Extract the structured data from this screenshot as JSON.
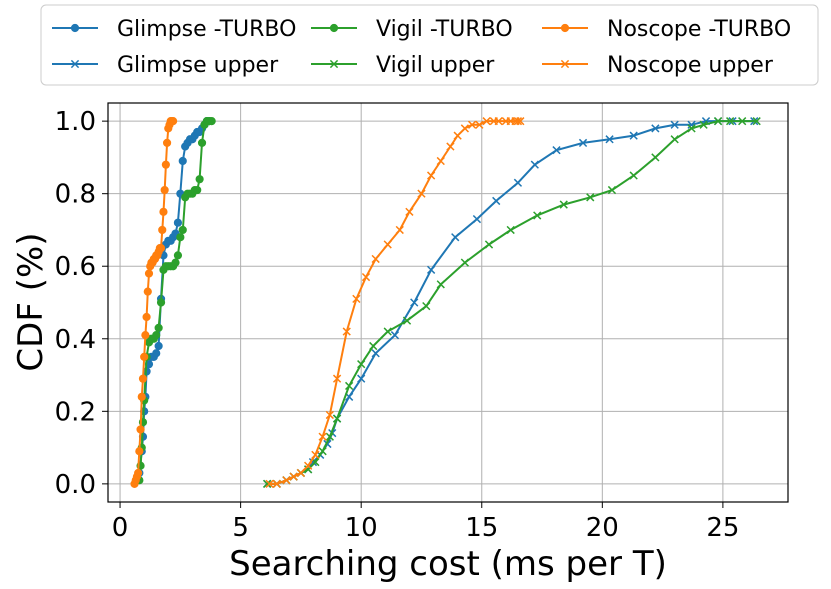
{
  "chart_data": {
    "type": "line",
    "xlabel": "Searching cost (ms per T)",
    "ylabel": "CDF (%)",
    "xlim": [
      -0.5,
      27.7
    ],
    "ylim": [
      -0.05,
      1.05
    ],
    "xticks": [
      0,
      5,
      10,
      15,
      20,
      25
    ],
    "xtick_labels": [
      "0",
      "5",
      "10",
      "15",
      "20",
      "25"
    ],
    "yticks": [
      0.0,
      0.2,
      0.4,
      0.6,
      0.8,
      1.0
    ],
    "ytick_labels": [
      "0.0",
      "0.2",
      "0.4",
      "0.6",
      "0.8",
      "1.0"
    ],
    "grid": true,
    "legend_position": "top",
    "series": [
      {
        "name": "Glimpse -TURBO",
        "color": "#1f77b4",
        "marker": "circle",
        "x": [
          0.7,
          0.8,
          0.9,
          0.95,
          1.0,
          1.05,
          1.1,
          1.2,
          1.3,
          1.4,
          1.5,
          1.6,
          1.7,
          1.8,
          1.9,
          2.0,
          2.1,
          2.2,
          2.3,
          2.4,
          2.5,
          2.6,
          2.7,
          2.8,
          2.9,
          3.0,
          3.1,
          3.2,
          3.3,
          3.4,
          3.5,
          3.6,
          3.7
        ],
        "y": [
          0.01,
          0.03,
          0.09,
          0.13,
          0.2,
          0.24,
          0.31,
          0.33,
          0.35,
          0.35,
          0.36,
          0.38,
          0.51,
          0.63,
          0.66,
          0.67,
          0.67,
          0.68,
          0.69,
          0.72,
          0.8,
          0.89,
          0.93,
          0.94,
          0.95,
          0.95,
          0.96,
          0.97,
          0.97,
          0.98,
          0.99,
          1.0,
          1.0
        ]
      },
      {
        "name": "Vigil -TURBO",
        "color": "#2ca02c",
        "marker": "circle",
        "x": [
          0.8,
          0.85,
          0.9,
          0.95,
          1.0,
          1.1,
          1.2,
          1.3,
          1.4,
          1.5,
          1.6,
          1.7,
          1.8,
          1.9,
          2.0,
          2.1,
          2.2,
          2.3,
          2.4,
          2.5,
          2.6,
          2.7,
          2.8,
          2.9,
          3.0,
          3.1,
          3.2,
          3.3,
          3.4,
          3.5,
          3.6,
          3.7,
          3.8
        ],
        "y": [
          0.01,
          0.05,
          0.1,
          0.17,
          0.23,
          0.35,
          0.39,
          0.4,
          0.4,
          0.41,
          0.43,
          0.5,
          0.59,
          0.6,
          0.6,
          0.6,
          0.6,
          0.61,
          0.63,
          0.68,
          0.7,
          0.79,
          0.8,
          0.8,
          0.8,
          0.81,
          0.81,
          0.84,
          0.94,
          0.99,
          1.0,
          1.0,
          1.0
        ]
      },
      {
        "name": "Noscope -TURBO",
        "color": "#ff7f0e",
        "marker": "circle",
        "x": [
          0.6,
          0.65,
          0.7,
          0.75,
          0.8,
          0.85,
          0.9,
          0.95,
          1.0,
          1.05,
          1.1,
          1.15,
          1.2,
          1.25,
          1.3,
          1.35,
          1.4,
          1.45,
          1.5,
          1.55,
          1.6,
          1.65,
          1.7,
          1.75,
          1.8,
          1.85,
          1.9,
          1.95,
          2.0,
          2.05,
          2.1,
          2.15,
          2.2
        ],
        "y": [
          0.0,
          0.01,
          0.02,
          0.03,
          0.09,
          0.15,
          0.24,
          0.29,
          0.35,
          0.41,
          0.46,
          0.53,
          0.58,
          0.6,
          0.61,
          0.61,
          0.62,
          0.62,
          0.63,
          0.63,
          0.64,
          0.65,
          0.65,
          0.7,
          0.75,
          0.81,
          0.88,
          0.94,
          0.98,
          0.99,
          1.0,
          1.0,
          1.0
        ]
      },
      {
        "name": "Glimpse upper",
        "color": "#1f77b4",
        "marker": "x",
        "x": [
          6.1,
          6.5,
          6.9,
          7.2,
          7.5,
          7.8,
          8.0,
          8.3,
          8.6,
          8.8,
          9.0,
          9.5,
          10.0,
          10.6,
          11.4,
          12.2,
          12.9,
          13.9,
          14.8,
          15.6,
          16.5,
          17.2,
          18.1,
          19.2,
          20.3,
          21.3,
          22.2,
          23.0,
          23.7,
          24.3,
          24.8,
          25.4,
          26.3
        ],
        "y": [
          0.0,
          0.0,
          0.01,
          0.02,
          0.03,
          0.04,
          0.06,
          0.08,
          0.11,
          0.14,
          0.18,
          0.24,
          0.29,
          0.36,
          0.41,
          0.5,
          0.59,
          0.68,
          0.73,
          0.78,
          0.83,
          0.88,
          0.92,
          0.94,
          0.95,
          0.96,
          0.98,
          0.99,
          0.99,
          1.0,
          1.0,
          1.0,
          1.0
        ]
      },
      {
        "name": "Vigil upper",
        "color": "#2ca02c",
        "marker": "x",
        "x": [
          6.1,
          6.5,
          6.9,
          7.2,
          7.5,
          7.8,
          8.1,
          8.4,
          8.7,
          9.0,
          9.5,
          10.0,
          10.5,
          11.1,
          11.9,
          12.7,
          13.3,
          14.3,
          15.3,
          16.2,
          17.3,
          18.4,
          19.5,
          20.4,
          21.3,
          22.2,
          23.0,
          23.7,
          24.2,
          24.8,
          25.3,
          25.8,
          26.4
        ],
        "y": [
          0.0,
          0.0,
          0.01,
          0.02,
          0.03,
          0.04,
          0.06,
          0.09,
          0.13,
          0.18,
          0.27,
          0.33,
          0.38,
          0.42,
          0.45,
          0.49,
          0.55,
          0.61,
          0.66,
          0.7,
          0.74,
          0.77,
          0.79,
          0.81,
          0.85,
          0.9,
          0.95,
          0.98,
          0.99,
          1.0,
          1.0,
          1.0,
          1.0
        ]
      },
      {
        "name": "Noscope upper",
        "color": "#ff7f0e",
        "marker": "x",
        "x": [
          6.2,
          6.5,
          6.9,
          7.2,
          7.5,
          7.8,
          8.1,
          8.4,
          8.7,
          9.0,
          9.4,
          9.8,
          10.2,
          10.6,
          11.1,
          11.6,
          12.0,
          12.5,
          12.9,
          13.3,
          13.7,
          14.0,
          14.3,
          14.6,
          14.9,
          15.2,
          15.5,
          15.7,
          16.0,
          16.2,
          16.4,
          16.5,
          16.6
        ],
        "y": [
          0.0,
          0.0,
          0.01,
          0.02,
          0.03,
          0.05,
          0.08,
          0.13,
          0.19,
          0.29,
          0.42,
          0.51,
          0.57,
          0.62,
          0.66,
          0.7,
          0.75,
          0.8,
          0.85,
          0.89,
          0.93,
          0.96,
          0.98,
          0.99,
          0.99,
          1.0,
          1.0,
          1.0,
          1.0,
          1.0,
          1.0,
          1.0,
          1.0
        ]
      }
    ]
  }
}
